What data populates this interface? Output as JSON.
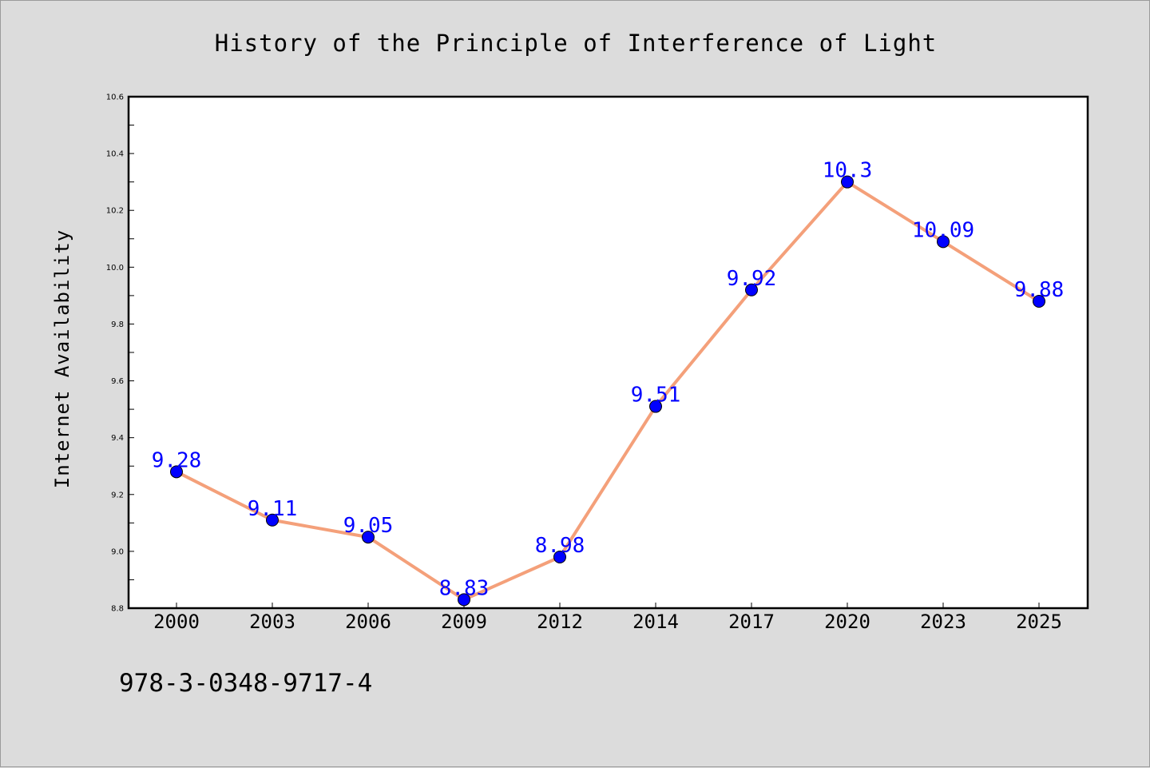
{
  "chart_data": {
    "type": "line",
    "title": "History of the Principle of Interference of Light",
    "xlabel": "",
    "ylabel": "Internet Availability",
    "categories": [
      "2000",
      "2003",
      "2006",
      "2009",
      "2012",
      "2014",
      "2017",
      "2020",
      "2023",
      "2025"
    ],
    "series": [
      {
        "values": [
          9.28,
          9.11,
          9.05,
          8.83,
          8.98,
          9.51,
          9.92,
          10.3,
          10.09,
          9.88
        ],
        "data_labels": [
          "9.28",
          "9.11",
          "9.05",
          "8.83",
          "8.98",
          "9.51",
          "9.92",
          "10.3",
          "10.09",
          "9.88"
        ],
        "line_color": "#f4a07a",
        "marker_color": "#0000ff"
      }
    ],
    "ylim": [
      8.8,
      10.6
    ],
    "yticks": [
      "8.8",
      "9.0",
      "9.2",
      "9.4",
      "9.6",
      "9.8",
      "10.0",
      "10.2",
      "10.4",
      "10.6"
    ],
    "grid": false,
    "legend": "none"
  },
  "footer": {
    "code": "978-3-0348-9717-4"
  },
  "colors": {
    "background": "#dcdcdc",
    "plot_area": "#ffffff",
    "label_text": "#0000ff"
  }
}
